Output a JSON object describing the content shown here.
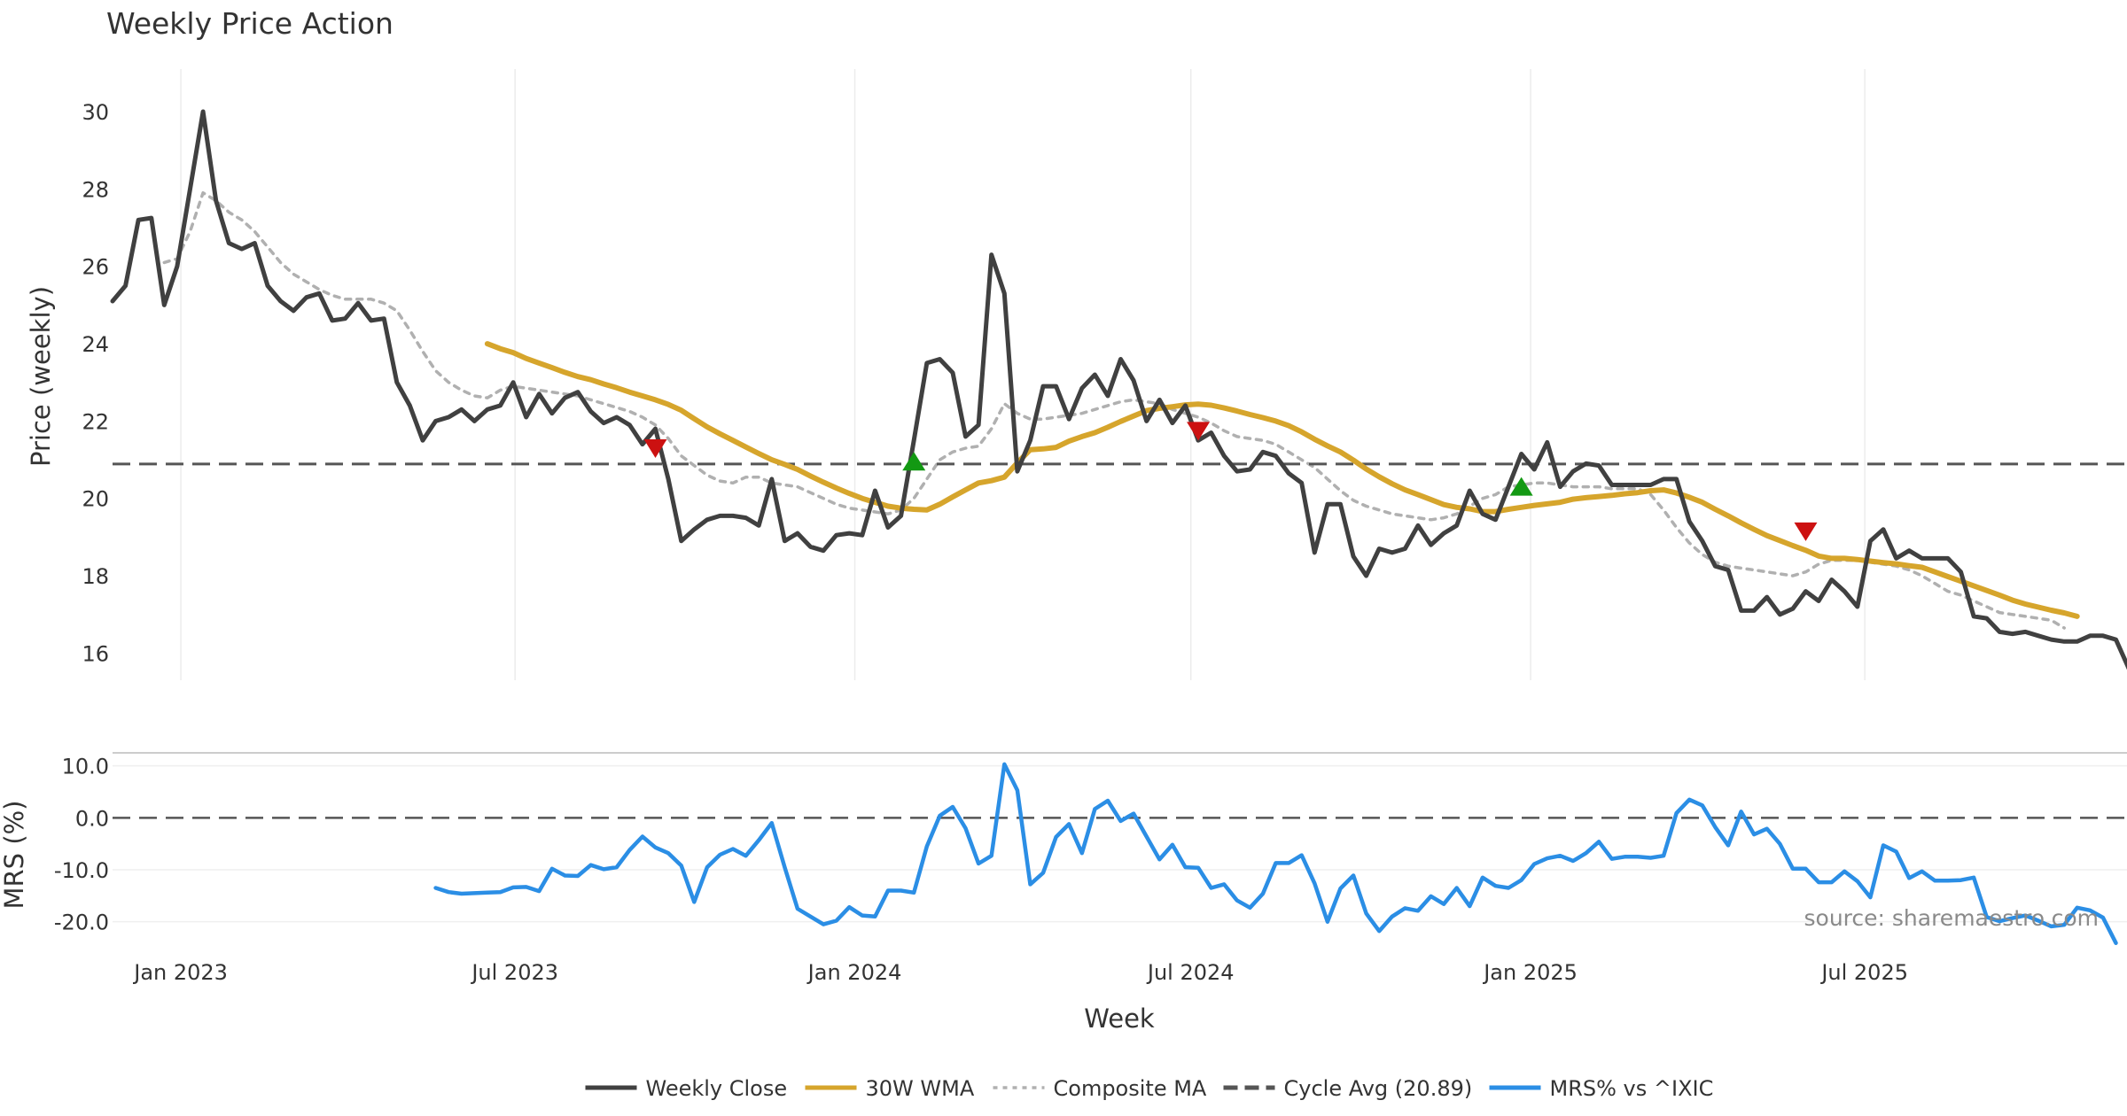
{
  "chart_data": {
    "type": "line",
    "title": "Weekly Price Action",
    "source": "source: sharemaestro.com",
    "xlabel": "Week",
    "x_start": "2022-11-25",
    "x_range": [
      "2022-11-25",
      "2025-11-20"
    ],
    "x_ticks": [
      {
        "date": "2023-01-01",
        "label": "Jan 2023"
      },
      {
        "date": "2023-07-01",
        "label": "Jul 2023"
      },
      {
        "date": "2024-01-01",
        "label": "Jan 2024"
      },
      {
        "date": "2024-07-01",
        "label": "Jul 2024"
      },
      {
        "date": "2025-01-01",
        "label": "Jan 2025"
      },
      {
        "date": "2025-07-01",
        "label": "Jul 2025"
      }
    ],
    "price_panel": {
      "ylabel": "Price (weekly)",
      "ylim": [
        15.3,
        31.1
      ],
      "y_ticks": [
        {
          "value": 16,
          "label": "16"
        },
        {
          "value": 18,
          "label": "18"
        },
        {
          "value": 20,
          "label": "20"
        },
        {
          "value": 22,
          "label": "22"
        },
        {
          "value": 24,
          "label": "24"
        },
        {
          "value": 26,
          "label": "26"
        },
        {
          "value": 28,
          "label": "28"
        },
        {
          "value": 30,
          "label": "30"
        }
      ],
      "cycle_avg": 20.89
    },
    "mrs_panel": {
      "ylabel": "MRS (%)",
      "ylim": [
        -25,
        12.5
      ],
      "y_ticks": [
        {
          "value": 10,
          "label": "10.0"
        },
        {
          "value": 0,
          "label": "0.0"
        },
        {
          "value": -10,
          "label": "-10.0"
        },
        {
          "value": -20,
          "label": "-20.0"
        }
      ],
      "zero_line": 0
    },
    "series": [
      {
        "name": "Weekly Close",
        "panel": "price",
        "color": "#404040",
        "style": "solid",
        "start_week": 0,
        "values": [
          25.1,
          25.5,
          27.2,
          27.25,
          25.0,
          26.0,
          28.0,
          30.0,
          27.7,
          26.6,
          26.45,
          26.6,
          25.5,
          25.1,
          24.85,
          25.2,
          25.3,
          24.6,
          24.65,
          25.05,
          24.6,
          24.65,
          23.0,
          22.4,
          21.5,
          22.0,
          22.1,
          22.3,
          22.0,
          22.3,
          22.4,
          23.0,
          22.1,
          22.7,
          22.2,
          22.6,
          22.75,
          22.25,
          21.95,
          22.1,
          21.9,
          21.4,
          21.8,
          20.5,
          18.9,
          19.2,
          19.45,
          19.55,
          19.55,
          19.5,
          19.3,
          20.5,
          18.9,
          19.1,
          18.75,
          18.65,
          19.05,
          19.1,
          19.05,
          20.2,
          19.25,
          19.55,
          21.5,
          23.5,
          23.6,
          23.25,
          21.6,
          21.9,
          26.3,
          25.3,
          20.7,
          21.5,
          22.9,
          22.9,
          22.05,
          22.85,
          23.2,
          22.65,
          23.6,
          23.05,
          22.0,
          22.55,
          21.95,
          22.4,
          21.5,
          21.7,
          21.1,
          20.7,
          20.75,
          21.2,
          21.1,
          20.65,
          20.4,
          18.6,
          19.85,
          19.85,
          18.5,
          18.0,
          18.7,
          18.6,
          18.7,
          19.3,
          18.8,
          19.1,
          19.3,
          20.2,
          19.6,
          19.45,
          20.3,
          21.15,
          20.75,
          21.45,
          20.3,
          20.7,
          20.9,
          20.85,
          20.35,
          20.35,
          20.35,
          20.35,
          20.5,
          20.5,
          19.4,
          18.9,
          18.25,
          18.15,
          17.1,
          17.1,
          17.45,
          17.0,
          17.15,
          17.6,
          17.35,
          17.9,
          17.6,
          17.2,
          18.9,
          19.2,
          18.45,
          18.65,
          18.45,
          18.45,
          18.45,
          18.1,
          16.95,
          16.9,
          16.55,
          16.5,
          16.55,
          16.45,
          16.35,
          16.3,
          16.3,
          16.45,
          16.45,
          16.35,
          15.6
        ]
      },
      {
        "name": "30W WMA",
        "panel": "price",
        "color": "#d6a52c",
        "style": "solid",
        "start_week": 29,
        "values": [
          24.0,
          23.87,
          23.77,
          23.62,
          23.5,
          23.38,
          23.26,
          23.15,
          23.07,
          22.96,
          22.86,
          22.75,
          22.65,
          22.55,
          22.43,
          22.28,
          22.06,
          21.85,
          21.67,
          21.5,
          21.33,
          21.16,
          21.0,
          20.88,
          20.75,
          20.58,
          20.42,
          20.27,
          20.13,
          20.0,
          19.9,
          19.8,
          19.75,
          19.72,
          19.7,
          19.85,
          20.04,
          20.22,
          20.4,
          20.46,
          20.55,
          20.92,
          21.26,
          21.28,
          21.32,
          21.48,
          21.6,
          21.7,
          21.84,
          21.99,
          22.13,
          22.27,
          22.33,
          22.37,
          22.42,
          22.44,
          22.41,
          22.34,
          22.26,
          22.17,
          22.09,
          22.0,
          21.88,
          21.72,
          21.53,
          21.36,
          21.2,
          20.99,
          20.76,
          20.56,
          20.38,
          20.22,
          20.1,
          19.97,
          19.84,
          19.77,
          19.73,
          19.66,
          19.66,
          19.72,
          19.77,
          19.82,
          19.86,
          19.9,
          19.98,
          20.02,
          20.05,
          20.08,
          20.12,
          20.15,
          20.2,
          20.22,
          20.14,
          20.03,
          19.9,
          19.72,
          19.55,
          19.37,
          19.2,
          19.04,
          18.91,
          18.78,
          18.66,
          18.51,
          18.45,
          18.45,
          18.42,
          18.38,
          18.34,
          18.31,
          18.26,
          18.22,
          18.1,
          17.98,
          17.86,
          17.74,
          17.62,
          17.5,
          17.37,
          17.27,
          17.19,
          17.11,
          17.04,
          16.95
        ]
      },
      {
        "name": "Composite MA",
        "panel": "price",
        "color": "#b0b0b0",
        "style": "dotted",
        "start_week": 4,
        "values": [
          26.1,
          26.2,
          26.9,
          27.9,
          27.7,
          27.4,
          27.2,
          26.9,
          26.5,
          26.1,
          25.8,
          25.6,
          25.4,
          25.25,
          25.15,
          25.15,
          25.15,
          25.05,
          24.85,
          24.35,
          23.8,
          23.3,
          23.0,
          22.8,
          22.65,
          22.6,
          22.8,
          22.9,
          22.85,
          22.8,
          22.75,
          22.7,
          22.65,
          22.55,
          22.45,
          22.35,
          22.25,
          22.1,
          21.9,
          21.55,
          21.1,
          20.85,
          20.6,
          20.45,
          20.4,
          20.55,
          20.55,
          20.4,
          20.35,
          20.3,
          20.15,
          20.0,
          19.85,
          19.75,
          19.7,
          19.65,
          19.6,
          19.7,
          20.0,
          20.5,
          21.0,
          21.2,
          21.3,
          21.35,
          21.8,
          22.45,
          22.2,
          22.05,
          22.05,
          22.1,
          22.15,
          22.2,
          22.3,
          22.4,
          22.5,
          22.55,
          22.5,
          22.45,
          22.3,
          22.2,
          22.1,
          21.95,
          21.75,
          21.6,
          21.55,
          21.5,
          21.4,
          21.2,
          21.0,
          20.8,
          20.5,
          20.2,
          19.95,
          19.8,
          19.7,
          19.6,
          19.55,
          19.5,
          19.45,
          19.5,
          19.6,
          19.8,
          20.0,
          20.1,
          20.3,
          20.35,
          20.4,
          20.4,
          20.35,
          20.3,
          20.3,
          20.3,
          20.25,
          20.25,
          20.25,
          20.1,
          19.7,
          19.25,
          18.85,
          18.55,
          18.35,
          18.25,
          18.2,
          18.15,
          18.1,
          18.05,
          18.0,
          18.1,
          18.3,
          18.4,
          18.4,
          18.4,
          18.35,
          18.3,
          18.25,
          18.15,
          18.0,
          17.8,
          17.6,
          17.5,
          17.35,
          17.2,
          17.05,
          17.0,
          16.95,
          16.9,
          16.85,
          16.65
        ]
      },
      {
        "name": "Cycle Avg (20.89)",
        "panel": "price",
        "color": "#555555",
        "style": "dashed",
        "value": 20.89
      },
      {
        "name": "MRS% vs ^IXIC",
        "panel": "mrs",
        "color": "#2b8ee5",
        "style": "solid",
        "start_week": 25,
        "values": [
          -13.5,
          -14.3,
          -14.6,
          -14.5,
          -14.4,
          -14.3,
          -13.4,
          -13.3,
          -14.1,
          -9.8,
          -11.1,
          -11.2,
          -9.1,
          -9.9,
          -9.5,
          -6.2,
          -3.6,
          -5.7,
          -6.8,
          -9.2,
          -16.2,
          -9.5,
          -7.1,
          -6.0,
          -7.3,
          -4.3,
          -1.0,
          -9.5,
          -17.5,
          -19.0,
          -20.5,
          -19.8,
          -17.2,
          -18.8,
          -19.0,
          -14.0,
          -14.0,
          -14.4,
          -5.5,
          0.4,
          2.1,
          -2.0,
          -8.8,
          -7.3,
          10.3,
          5.3,
          -12.8,
          -10.6,
          -3.7,
          -1.2,
          -6.8,
          1.7,
          3.3,
          -0.6,
          0.8,
          -3.6,
          -8.0,
          -5.2,
          -9.5,
          -9.6,
          -13.5,
          -12.8,
          -15.9,
          -17.3,
          -14.6,
          -8.7,
          -8.7,
          -7.2,
          -12.6,
          -20.0,
          -13.6,
          -11.1,
          -18.4,
          -21.8,
          -19.0,
          -17.4,
          -17.9,
          -15.1,
          -16.6,
          -13.5,
          -17.0,
          -11.5,
          -13.1,
          -13.5,
          -12.0,
          -8.9,
          -7.8,
          -7.3,
          -8.3,
          -6.8,
          -4.6,
          -7.9,
          -7.5,
          -7.5,
          -7.7,
          -7.3,
          0.9,
          3.5,
          2.4,
          -1.8,
          -5.3,
          1.2,
          -3.2,
          -2.1,
          -5.0,
          -9.8,
          -9.8,
          -12.4,
          -12.4,
          -10.3,
          -12.2,
          -15.3,
          -5.3,
          -6.5,
          -11.6,
          -10.3,
          -12.1,
          -12.1,
          -12.0,
          -11.5,
          -19.1,
          -19.9,
          -19.3,
          -18.8,
          -19.8,
          -20.9,
          -20.6,
          -17.3,
          -17.8,
          -19.2,
          -24.1
        ]
      }
    ],
    "signals": [
      {
        "type": "sell",
        "color": "#cc1111",
        "date": "2023-09-15",
        "value": 21.3
      },
      {
        "type": "buy",
        "color": "#139913",
        "date": "2024-02-02",
        "value": 20.95
      },
      {
        "type": "sell",
        "color": "#cc1111",
        "date": "2024-07-05",
        "value": 21.75
      },
      {
        "type": "buy",
        "color": "#139913",
        "date": "2024-12-27",
        "value": 20.3
      },
      {
        "type": "sell",
        "color": "#cc1111",
        "date": "2025-05-30",
        "value": 19.15
      }
    ],
    "legend": {
      "position": "bottom-center",
      "entries": [
        {
          "label": "Weekly Close",
          "color": "#404040",
          "style": "solid"
        },
        {
          "label": "30W WMA",
          "color": "#d6a52c",
          "style": "solid"
        },
        {
          "label": "Composite MA",
          "color": "#b0b0b0",
          "style": "dotted"
        },
        {
          "label": "Cycle Avg (20.89)",
          "color": "#555555",
          "style": "dashed"
        },
        {
          "label": "MRS% vs ^IXIC",
          "color": "#2b8ee5",
          "style": "solid"
        }
      ]
    },
    "grid": true
  }
}
